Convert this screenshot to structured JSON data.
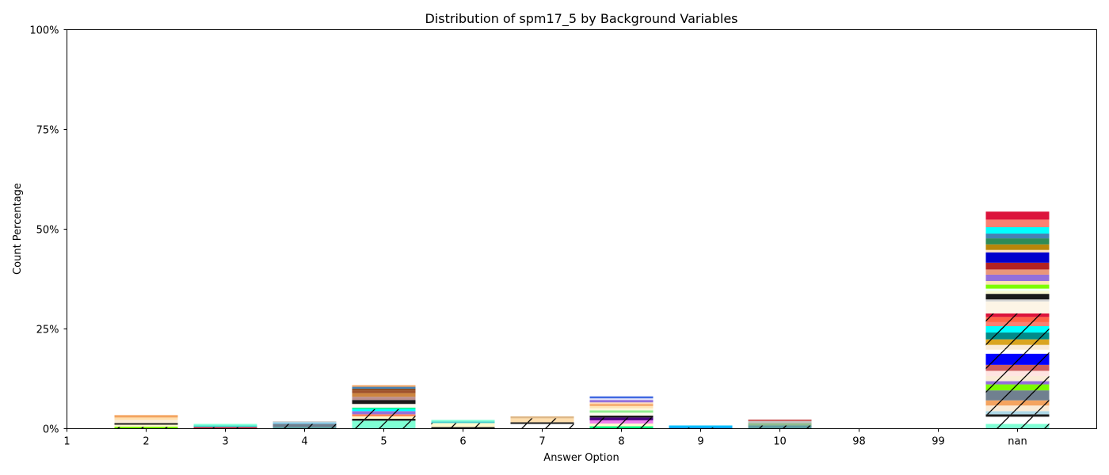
{
  "chart_data": {
    "type": "bar",
    "stacked": true,
    "title": "Distribution of spm17_5 by Background Variables",
    "xlabel": "Answer Option",
    "ylabel": "Count Percentage",
    "ylim": [
      0,
      100
    ],
    "y_ticks": [
      "0%",
      "25%",
      "50%",
      "75%",
      "100%"
    ],
    "y_tick_values": [
      0,
      25,
      50,
      75,
      100
    ],
    "x_ticks": [
      "1",
      "2",
      "3",
      "4",
      "5",
      "6",
      "7",
      "8",
      "9",
      "10",
      "98",
      "99",
      "nan"
    ],
    "categories": [
      "2",
      "3",
      "4",
      "5",
      "6",
      "7",
      "8",
      "9",
      "10",
      "nan"
    ],
    "grid": false,
    "legend": "none",
    "bars": [
      {
        "category": "2",
        "segments": [
          {
            "value": 0.5,
            "color": "#7cfc00",
            "hatch": true
          },
          {
            "value": 0.5,
            "color": "#fffacd"
          },
          {
            "value": 0.4,
            "color": "#1a1a1a"
          },
          {
            "value": 0.8,
            "color": "#faebd7"
          },
          {
            "value": 0.6,
            "color": "#ffdead"
          },
          {
            "value": 0.6,
            "color": "#f4a460"
          }
        ]
      },
      {
        "category": "3",
        "segments": [
          {
            "value": 0.4,
            "color": "#dc143c",
            "hatch": true
          },
          {
            "value": 0.4,
            "color": "#40e0d0"
          },
          {
            "value": 0.4,
            "color": "#7fffd4"
          }
        ]
      },
      {
        "category": "4",
        "segments": [
          {
            "value": 0.5,
            "color": "#5f9ea0",
            "hatch": true
          },
          {
            "value": 0.7,
            "color": "#708090",
            "hatch": true
          },
          {
            "value": 0.4,
            "color": "#87ceeb"
          },
          {
            "value": 0.3,
            "color": "#d3d3d3"
          }
        ]
      },
      {
        "category": "5",
        "segments": [
          {
            "value": 2.0,
            "color": "#7fffd4",
            "hatch": true
          },
          {
            "value": 0.5,
            "color": "#1a1a1a"
          },
          {
            "value": 0.6,
            "color": "#fffacd",
            "hatch": true
          },
          {
            "value": 0.5,
            "color": "#ff7f50",
            "hatch": true
          },
          {
            "value": 0.8,
            "color": "#9370db",
            "hatch": true
          },
          {
            "value": 0.5,
            "color": "#00ffff",
            "hatch": true
          },
          {
            "value": 0.4,
            "color": "#00fa9a"
          },
          {
            "value": 0.9,
            "color": "#fffaf0"
          },
          {
            "value": 1.0,
            "color": "#1a1a1a"
          },
          {
            "value": 0.8,
            "color": "#bc8f8f"
          },
          {
            "value": 0.9,
            "color": "#cd853f"
          },
          {
            "value": 0.7,
            "color": "#a0522d"
          },
          {
            "value": 0.4,
            "color": "#8b4513"
          },
          {
            "value": 0.5,
            "color": "#4682b4"
          },
          {
            "value": 0.4,
            "color": "#f4a460"
          }
        ]
      },
      {
        "category": "6",
        "segments": [
          {
            "value": 0.4,
            "color": "#1a1a1a",
            "hatch": true
          },
          {
            "value": 1.0,
            "color": "#fffacd",
            "hatch": true
          },
          {
            "value": 0.4,
            "color": "#48d1cc"
          },
          {
            "value": 0.4,
            "color": "#7fffd4"
          }
        ]
      },
      {
        "category": "7",
        "segments": [
          {
            "value": 1.2,
            "color": "#ffffff",
            "hatch": true
          },
          {
            "value": 0.4,
            "color": "#1a1a1a"
          },
          {
            "value": 1.0,
            "color": "#ffdead",
            "hatch": true
          },
          {
            "value": 0.5,
            "color": "#deb887"
          }
        ]
      },
      {
        "category": "8",
        "segments": [
          {
            "value": 0.6,
            "color": "#00ff7f",
            "hatch": true
          },
          {
            "value": 0.7,
            "color": "#fffacd",
            "hatch": true
          },
          {
            "value": 0.8,
            "color": "#ee82ee",
            "hatch": true
          },
          {
            "value": 0.7,
            "color": "#4b0082",
            "hatch": true
          },
          {
            "value": 0.5,
            "color": "#1a1a1a"
          },
          {
            "value": 0.7,
            "color": "#fffaf0"
          },
          {
            "value": 0.6,
            "color": "#90ee90"
          },
          {
            "value": 0.5,
            "color": "#fff8dc"
          },
          {
            "value": 0.6,
            "color": "#ffe4b5"
          },
          {
            "value": 0.5,
            "color": "#f4a460"
          },
          {
            "value": 0.4,
            "color": "#ffdab9"
          },
          {
            "value": 0.6,
            "color": "#9370db"
          },
          {
            "value": 0.4,
            "color": "#e6e6fa"
          },
          {
            "value": 0.5,
            "color": "#4169e1"
          }
        ]
      },
      {
        "category": "9",
        "segments": [
          {
            "value": 0.3,
            "color": "#1e90ff",
            "hatch": true
          },
          {
            "value": 0.5,
            "color": "#00bfff"
          }
        ]
      },
      {
        "category": "10",
        "segments": [
          {
            "value": 0.8,
            "color": "#5f9ea0",
            "hatch": true
          },
          {
            "value": 0.6,
            "color": "#8fbc8f"
          },
          {
            "value": 0.5,
            "color": "#c0c0c0"
          },
          {
            "value": 0.4,
            "color": "#cd5c5c"
          }
        ]
      },
      {
        "category": "nan",
        "segments": [
          {
            "value": 1.2,
            "color": "#7fffd4",
            "hatch": true
          },
          {
            "value": 1.8,
            "color": "#ffffff",
            "hatch": true
          },
          {
            "value": 0.6,
            "color": "#1a1a1a"
          },
          {
            "value": 0.8,
            "color": "#add8e6",
            "hatch": true
          },
          {
            "value": 1.4,
            "color": "#faebd7",
            "hatch": true
          },
          {
            "value": 1.3,
            "color": "#f4a460",
            "hatch": true
          },
          {
            "value": 2.5,
            "color": "#708090",
            "hatch": true
          },
          {
            "value": 1.5,
            "color": "#7cfc00",
            "hatch": true
          },
          {
            "value": 0.8,
            "color": "#9370db",
            "hatch": true
          },
          {
            "value": 1.3,
            "color": "#faebd7",
            "hatch": true
          },
          {
            "value": 1.3,
            "color": "#ffe4e1",
            "hatch": true
          },
          {
            "value": 1.5,
            "color": "#cd5c5c",
            "hatch": true
          },
          {
            "value": 2.8,
            "color": "#0000ff",
            "hatch": true
          },
          {
            "value": 1.0,
            "color": "#ffffff",
            "hatch": true
          },
          {
            "value": 1.2,
            "color": "#faebd7",
            "hatch": true
          },
          {
            "value": 1.4,
            "color": "#daa520",
            "hatch": true
          },
          {
            "value": 1.7,
            "color": "#008b8b",
            "hatch": true
          },
          {
            "value": 1.6,
            "color": "#00ffff",
            "hatch": true
          },
          {
            "value": 1.0,
            "color": "#fa8072",
            "hatch": true
          },
          {
            "value": 1.3,
            "color": "#ff6347",
            "hatch": true
          },
          {
            "value": 0.9,
            "color": "#dc143c",
            "hatch": true
          },
          {
            "value": 3.0,
            "color": "#fdf5e6"
          },
          {
            "value": 0.5,
            "color": "#d3d3d3"
          },
          {
            "value": 1.4,
            "color": "#1a1a1a"
          },
          {
            "value": 0.7,
            "color": "#fafad2"
          },
          {
            "value": 0.6,
            "color": "#f0fff0"
          },
          {
            "value": 1.0,
            "color": "#7cfc00"
          },
          {
            "value": 0.9,
            "color": "#ffe4b5"
          },
          {
            "value": 1.6,
            "color": "#9370db"
          },
          {
            "value": 1.3,
            "color": "#e9967a"
          },
          {
            "value": 1.7,
            "color": "#b22222"
          },
          {
            "value": 2.6,
            "color": "#0000cd"
          },
          {
            "value": 0.6,
            "color": "#ffe4c4"
          },
          {
            "value": 1.4,
            "color": "#b8860b"
          },
          {
            "value": 1.5,
            "color": "#2e8b57"
          },
          {
            "value": 1.2,
            "color": "#4682b4"
          },
          {
            "value": 1.6,
            "color": "#00ffff"
          },
          {
            "value": 1.9,
            "color": "#fa8072"
          },
          {
            "value": 2.0,
            "color": "#dc143c"
          }
        ]
      }
    ]
  }
}
